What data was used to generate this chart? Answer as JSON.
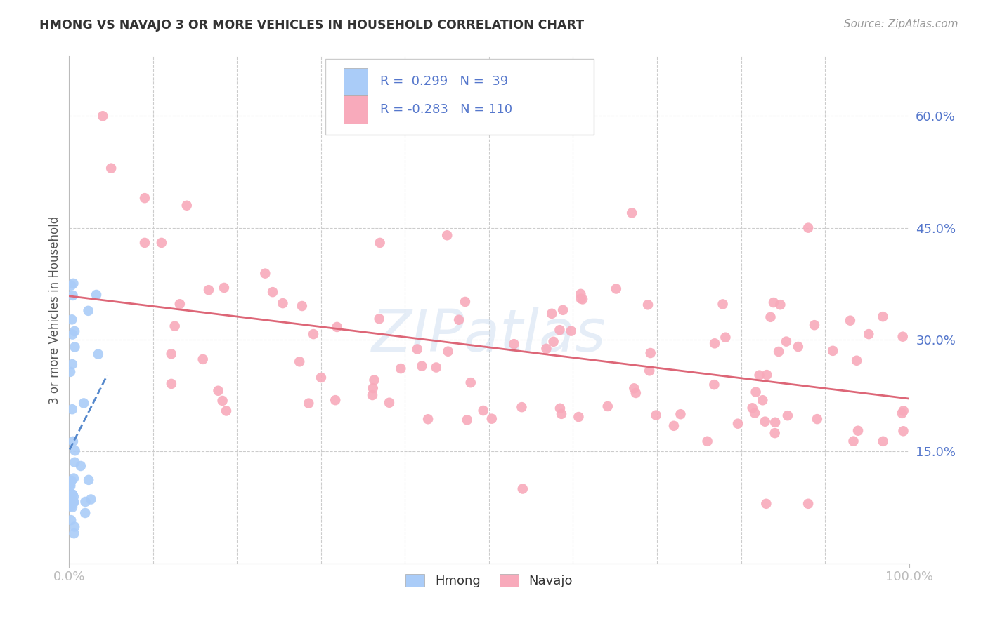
{
  "title": "HMONG VS NAVAJO 3 OR MORE VEHICLES IN HOUSEHOLD CORRELATION CHART",
  "source": "Source: ZipAtlas.com",
  "ylabel": "3 or more Vehicles in Household",
  "y_tick_labels": [
    "15.0%",
    "30.0%",
    "45.0%",
    "60.0%"
  ],
  "y_tick_positions": [
    0.15,
    0.3,
    0.45,
    0.6
  ],
  "x_lim": [
    0.0,
    1.0
  ],
  "y_lim": [
    0.0,
    0.68
  ],
  "legend_hmong_r": " 0.299",
  "legend_hmong_n": " 39",
  "legend_navajo_r": "-0.283",
  "legend_navajo_n": "110",
  "hmong_color": "#aaccf8",
  "navajo_color": "#f8aabb",
  "hmong_line_color": "#5588cc",
  "navajo_line_color": "#dd6677",
  "watermark_text": "ZIPatlas",
  "background_color": "#ffffff",
  "grid_color": "#cccccc",
  "label_color": "#5577cc",
  "title_color": "#333333",
  "source_color": "#999999"
}
